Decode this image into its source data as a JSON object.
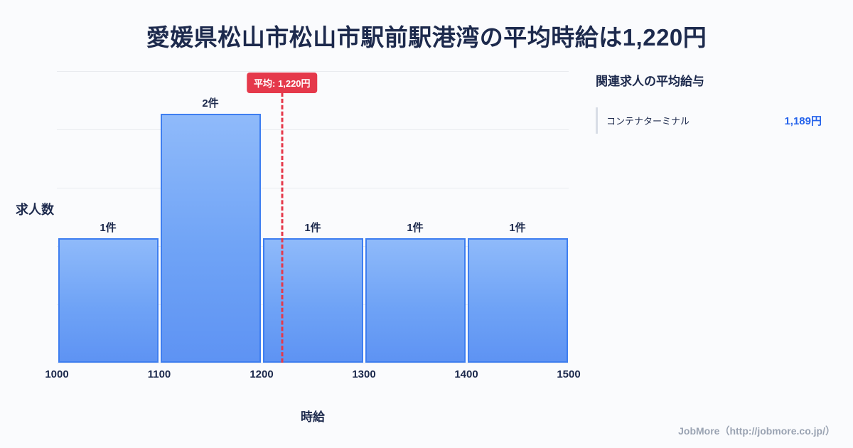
{
  "chart_data": {
    "type": "bar",
    "title": "愛媛県松山市松山市駅前駅港湾の平均時給は1,220円",
    "xlabel": "時給",
    "ylabel": "求人数",
    "xlim": [
      1000,
      1500
    ],
    "ylim": [
      0,
      2.34
    ],
    "grid": true,
    "x_ticks": [
      "1000",
      "1100",
      "1200",
      "1300",
      "1400",
      "1500"
    ],
    "bins": [
      {
        "range": [
          1000,
          1100
        ],
        "count": 1,
        "label": "1件"
      },
      {
        "range": [
          1100,
          1200
        ],
        "count": 2,
        "label": "2件"
      },
      {
        "range": [
          1200,
          1300
        ],
        "count": 1,
        "label": "1件"
      },
      {
        "range": [
          1300,
          1400
        ],
        "count": 1,
        "label": "1件"
      },
      {
        "range": [
          1400,
          1500
        ],
        "count": 1,
        "label": "1件"
      }
    ],
    "average": {
      "value": 1220,
      "label": "平均: 1,220円"
    },
    "colors": {
      "bar_top": "#8fbafa",
      "bar_bottom": "#5e93f3",
      "bar_border": "#3e7ef0",
      "average_line": "#e5394b",
      "grid": "#e9ebef",
      "value_accent": "#2563eb"
    }
  },
  "side_panel": {
    "heading": "関連求人の平均給与",
    "items": [
      {
        "label": "コンテナターミナル",
        "value": "1,189円"
      }
    ]
  },
  "footer": {
    "credit": "JobMore（http://jobmore.co.jp/）"
  }
}
